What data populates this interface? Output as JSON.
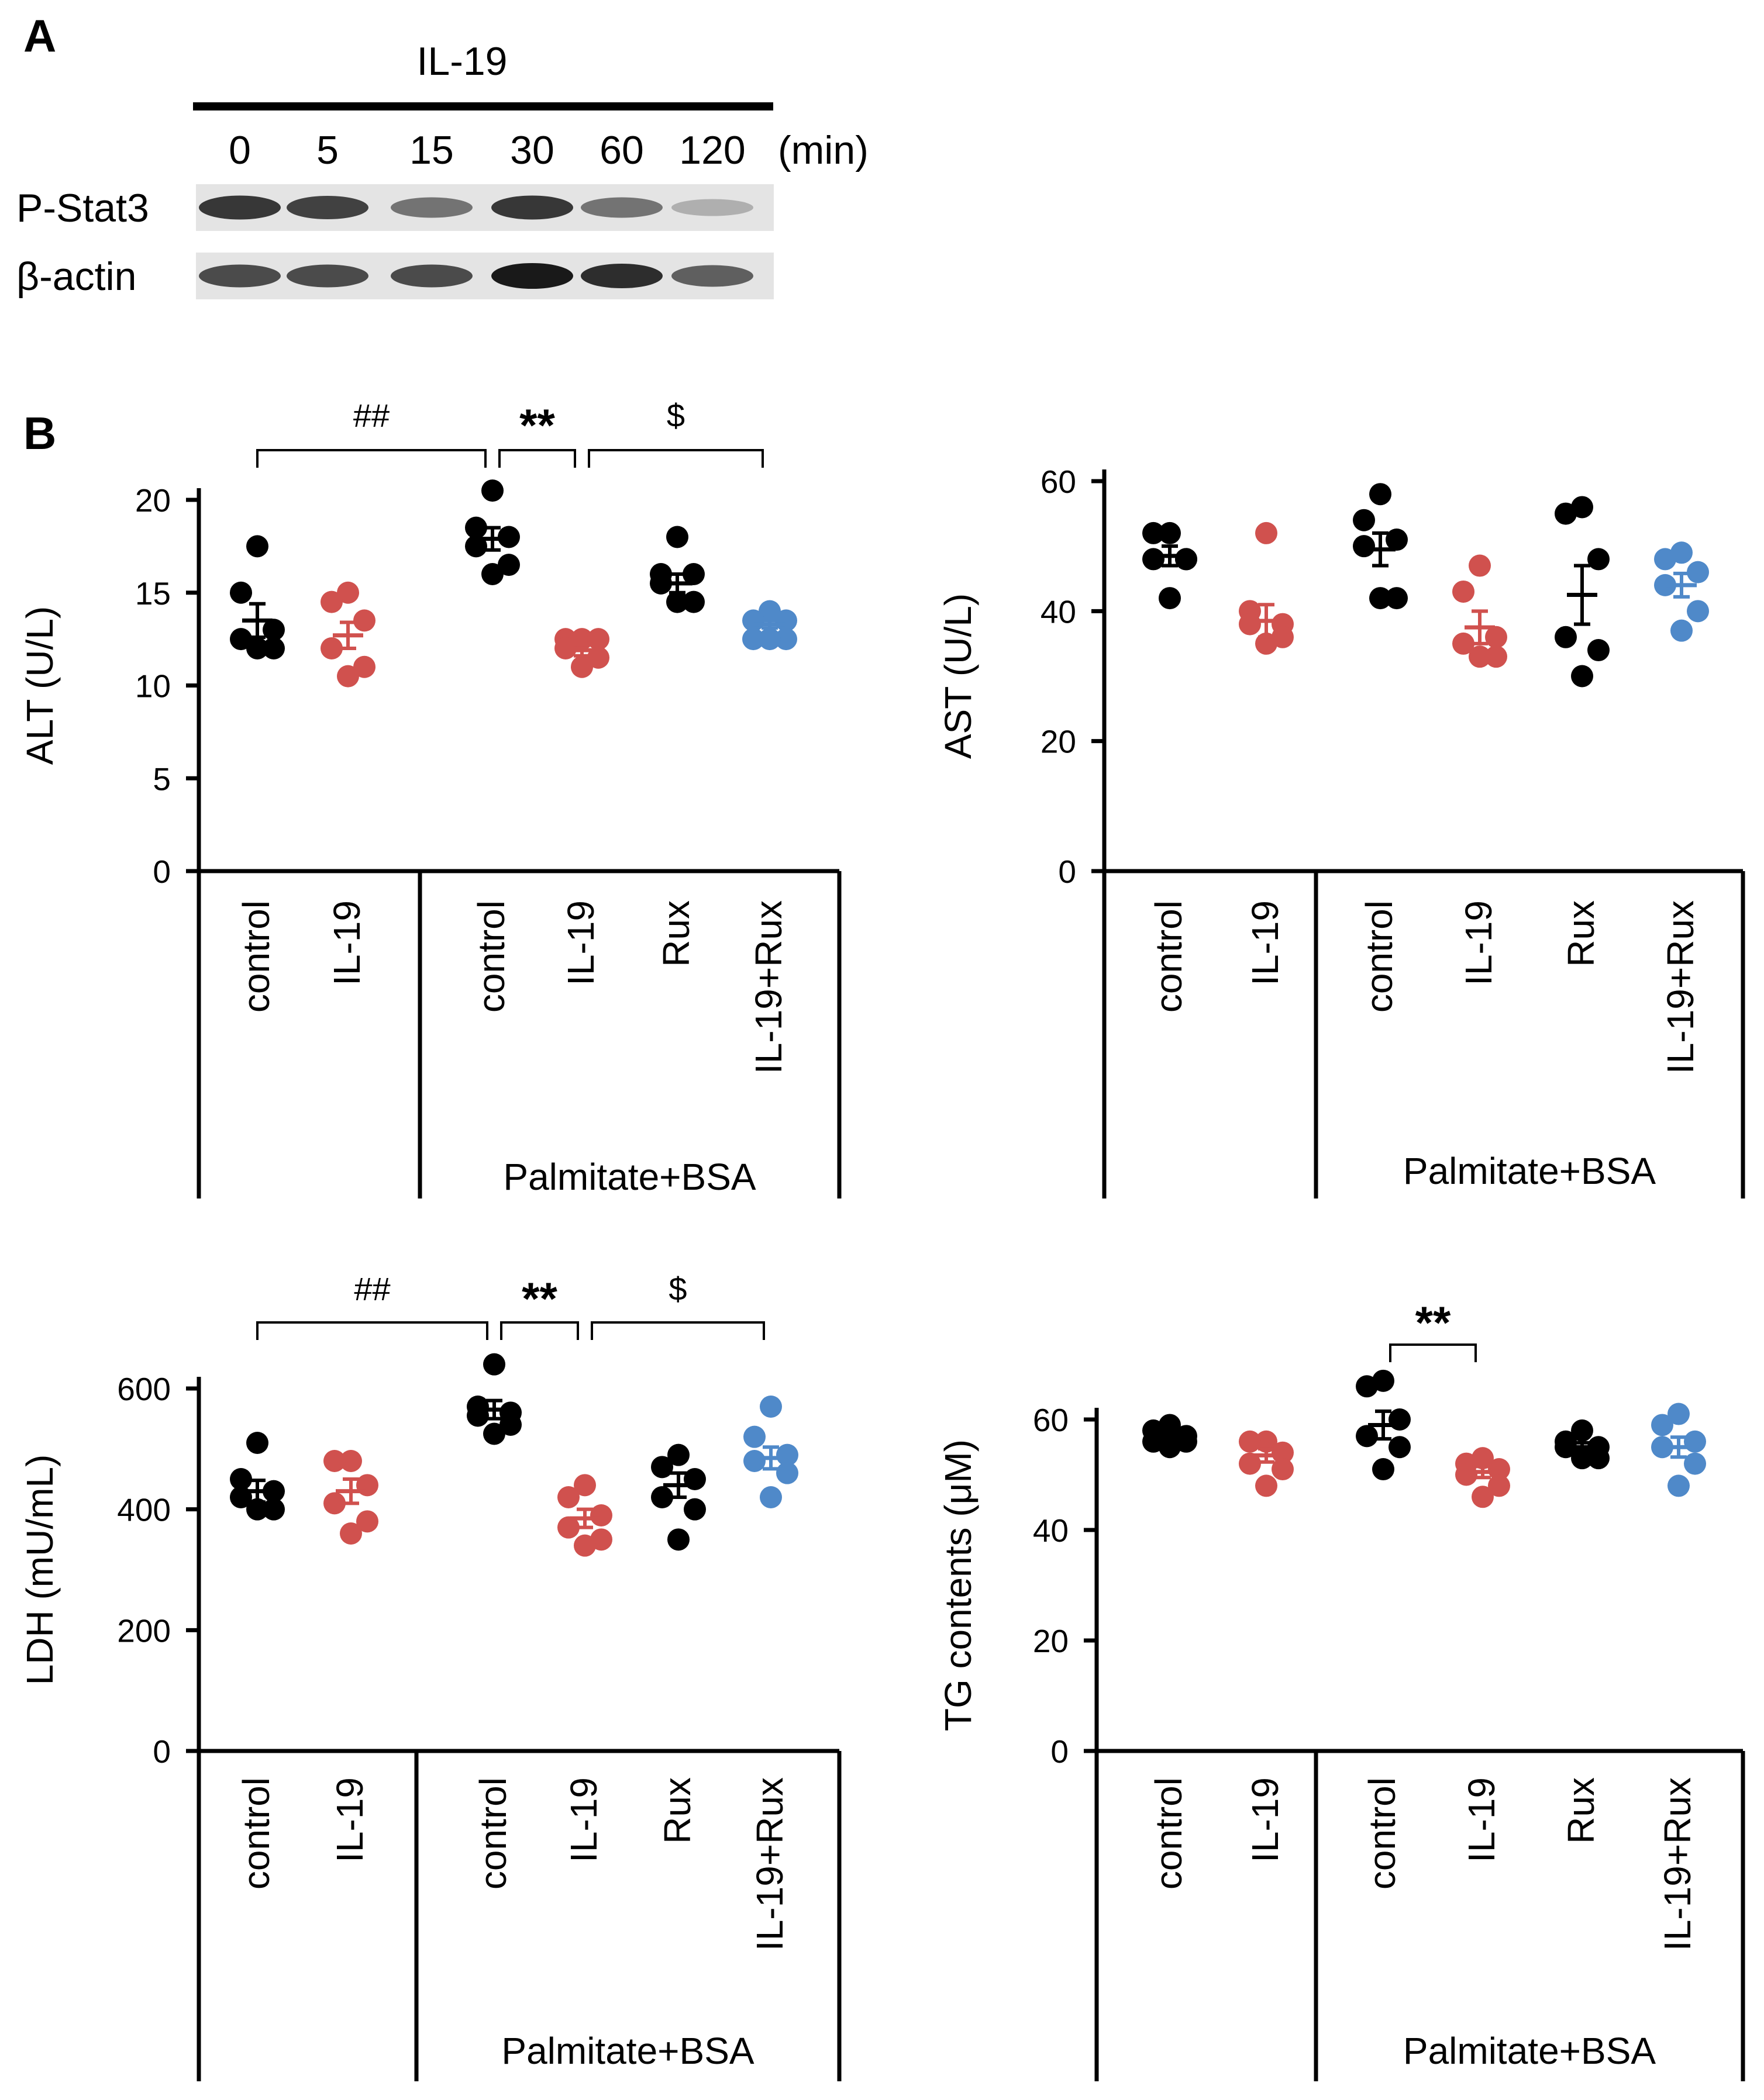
{
  "figure": {
    "panel_a": {
      "label": "A",
      "treatment": "IL-19",
      "time_points": [
        "0",
        "5",
        "15",
        "30",
        "60",
        "120"
      ],
      "time_unit": "(min)",
      "rows": [
        {
          "label": "P-Stat3",
          "intensities": [
            0.85,
            0.8,
            0.55,
            0.85,
            0.55,
            0.25
          ]
        },
        {
          "label": "β-actin",
          "intensities": [
            0.75,
            0.75,
            0.75,
            1.0,
            0.9,
            0.65
          ]
        }
      ]
    },
    "panel_b": {
      "label": "B"
    },
    "group_label": "Palmitate+BSA",
    "colors": {
      "control": "#000000",
      "il19": "#d0514e",
      "rux": "#000000",
      "il19_rux": "#4f89c9"
    }
  },
  "chart_data": [
    {
      "type": "scatter",
      "ylabel": "ALT (U/L)",
      "ylim": [
        0,
        20
      ],
      "yticks": [
        "0",
        "5",
        "10",
        "15",
        "20"
      ],
      "categories": [
        "control",
        "IL-19",
        "control",
        "IL-19",
        "Rux",
        "IL-19+Rux"
      ],
      "series": [
        {
          "values": [
            17.5,
            15.0,
            13.0,
            12.5,
            12.0,
            12.0
          ],
          "mean": 13.5,
          "sem": 0.9
        },
        {
          "values": [
            15.0,
            14.5,
            13.5,
            12.0,
            11.0,
            10.5
          ],
          "mean": 12.7,
          "sem": 0.7
        },
        {
          "values": [
            20.5,
            18.5,
            18.0,
            17.5,
            16.5,
            16.0
          ],
          "mean": 17.9,
          "sem": 0.6
        },
        {
          "values": [
            12.5,
            12.5,
            12.5,
            12.0,
            11.5,
            11.0
          ],
          "mean": 11.9,
          "sem": 0.3
        },
        {
          "values": [
            18.0,
            16.0,
            16.0,
            15.5,
            14.5,
            14.5
          ],
          "mean": 15.5,
          "sem": 0.5
        },
        {
          "values": [
            14.0,
            13.5,
            13.5,
            12.5,
            12.5,
            12.5
          ],
          "mean": 13.3,
          "sem": 0.2
        }
      ],
      "significance": [
        {
          "from": 0,
          "to": 2,
          "label": "##"
        },
        {
          "from": 2,
          "to": 3,
          "label": "**"
        },
        {
          "from": 3,
          "to": 5,
          "label": "$"
        }
      ]
    },
    {
      "type": "scatter",
      "ylabel": "AST (U/L)",
      "ylim": [
        0,
        60
      ],
      "yticks": [
        "0",
        "20",
        "40",
        "60"
      ],
      "categories": [
        "control",
        "IL-19",
        "control",
        "IL-19",
        "Rux",
        "IL-19+Rux"
      ],
      "series": [
        {
          "values": [
            52,
            52,
            48,
            48,
            48,
            42
          ],
          "mean": 48.5,
          "sem": 1.5
        },
        {
          "values": [
            52,
            40,
            38,
            38,
            36,
            35
          ],
          "mean": 38.5,
          "sem": 2.5
        },
        {
          "values": [
            58,
            54,
            51,
            50,
            42,
            42
          ],
          "mean": 49.5,
          "sem": 2.5
        },
        {
          "values": [
            47,
            43,
            36,
            35,
            33,
            33
          ],
          "mean": 37.5,
          "sem": 2.5
        },
        {
          "values": [
            56,
            55,
            48,
            36,
            34,
            30
          ],
          "mean": 42.5,
          "sem": 4.5
        },
        {
          "values": [
            49,
            48,
            46,
            44,
            40,
            37
          ],
          "mean": 44,
          "sem": 1.8
        }
      ],
      "significance": []
    },
    {
      "type": "scatter",
      "ylabel": "LDH (mU/mL)",
      "ylim": [
        0,
        600
      ],
      "yticks": [
        "0",
        "200",
        "400",
        "600"
      ],
      "categories": [
        "control",
        "IL-19",
        "control",
        "IL-19",
        "Rux",
        "IL-19+Rux"
      ],
      "series": [
        {
          "values": [
            510,
            450,
            430,
            420,
            400,
            400
          ],
          "mean": 430,
          "sem": 18
        },
        {
          "values": [
            480,
            480,
            440,
            410,
            380,
            360
          ],
          "mean": 430,
          "sem": 20
        },
        {
          "values": [
            640,
            570,
            560,
            555,
            540,
            525
          ],
          "mean": 565,
          "sem": 15
        },
        {
          "values": [
            440,
            420,
            390,
            370,
            350,
            340
          ],
          "mean": 385,
          "sem": 15
        },
        {
          "values": [
            490,
            470,
            450,
            420,
            400,
            350
          ],
          "mean": 440,
          "sem": 20
        },
        {
          "values": [
            570,
            520,
            490,
            480,
            460,
            420
          ],
          "mean": 485,
          "sem": 18
        }
      ],
      "significance": [
        {
          "from": 0,
          "to": 2,
          "label": "##"
        },
        {
          "from": 2,
          "to": 3,
          "label": "**"
        },
        {
          "from": 3,
          "to": 5,
          "label": "$"
        }
      ]
    },
    {
      "type": "scatter",
      "ylabel": "TG contents (μM)",
      "ylim": [
        0,
        60
      ],
      "yticks": [
        "0",
        "20",
        "40",
        "60"
      ],
      "categories": [
        "control",
        "IL-19",
        "control",
        "IL-19",
        "Rux",
        "IL-19+Rux"
      ],
      "series": [
        {
          "values": [
            59,
            58,
            57,
            56,
            56,
            55
          ],
          "mean": 57,
          "sem": 0.8
        },
        {
          "values": [
            56,
            56,
            54,
            52,
            51,
            48
          ],
          "mean": 53.5,
          "sem": 1.2
        },
        {
          "values": [
            67,
            66,
            60,
            57,
            55,
            51
          ],
          "mean": 59,
          "sem": 2.5
        },
        {
          "values": [
            53,
            52,
            51,
            50,
            48,
            46
          ],
          "mean": 50.5,
          "sem": 1.0
        },
        {
          "values": [
            58,
            56,
            55,
            55,
            53,
            53
          ],
          "mean": 55,
          "sem": 0.8
        },
        {
          "values": [
            61,
            59,
            56,
            55,
            52,
            48
          ],
          "mean": 55,
          "sem": 1.8
        }
      ],
      "significance": [
        {
          "from": 2,
          "to": 3,
          "label": "**"
        }
      ]
    }
  ]
}
